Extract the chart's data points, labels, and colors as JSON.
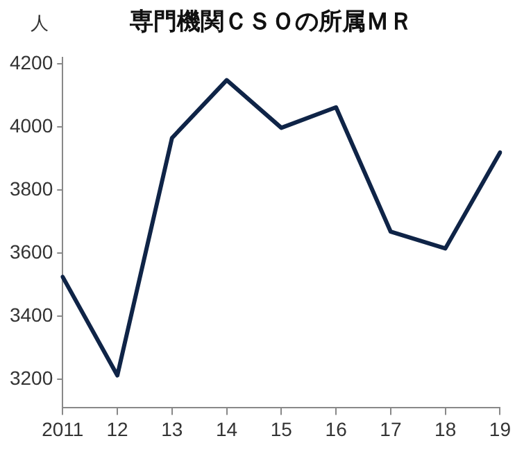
{
  "chart_data": {
    "type": "line",
    "title": "専門機関ＣＳＯの所属ＭＲ",
    "ylabel": "人",
    "categories": [
      "2011",
      "12",
      "13",
      "14",
      "15",
      "16",
      "17",
      "18",
      "19"
    ],
    "series": [
      {
        "color": "#0f2447",
        "values": [
          3525,
          3213,
          3965,
          4148,
          3997,
          4062,
          3668,
          3615,
          3919
        ]
      }
    ],
    "ylim": [
      3110,
      4220
    ],
    "yticks": [
      3200,
      3400,
      3600,
      3800,
      4000,
      4200
    ],
    "grid": false,
    "legend": false,
    "marker": "none",
    "line_style": "solid"
  }
}
